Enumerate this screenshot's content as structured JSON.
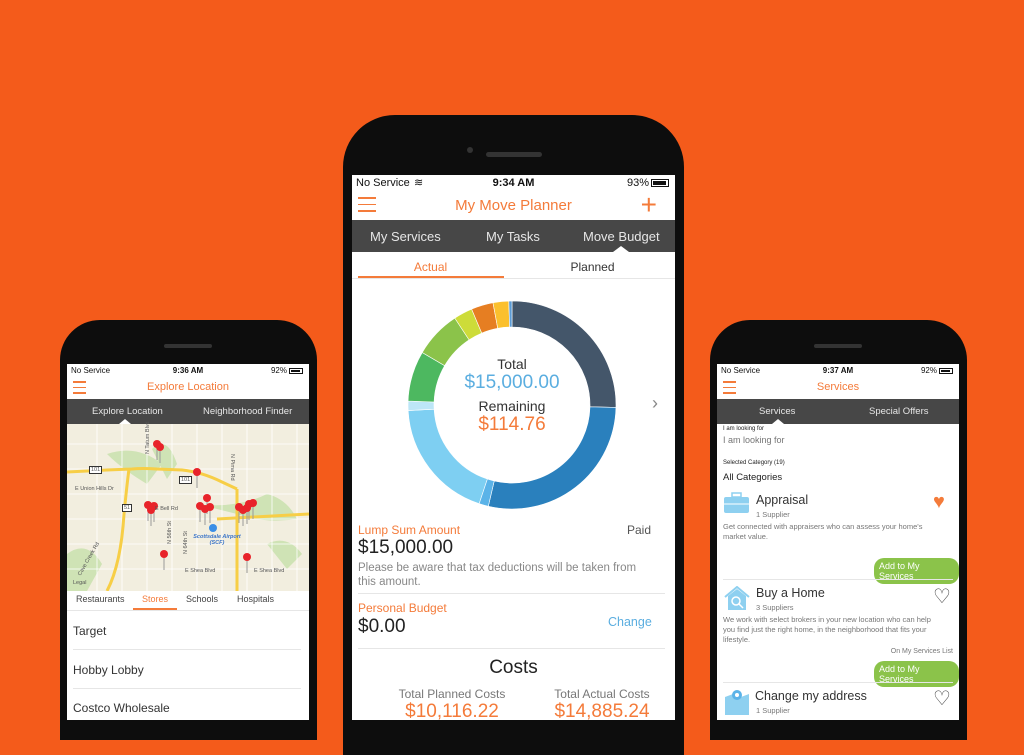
{
  "colors": {
    "background": "#F45B1B",
    "accent": "#F47B3A",
    "tabbar": "#474747",
    "link": "#5BAEE0",
    "button": "#8BC34A"
  },
  "center": {
    "status": {
      "carrier": "No Service",
      "time": "9:34 AM",
      "battery": "93%"
    },
    "title": "My Move Planner",
    "menu_icon": "hamburger-icon",
    "add_icon": "plus-icon",
    "tabs": [
      "My Services",
      "My Tasks",
      "Move Budget"
    ],
    "active_tab": "Move Budget",
    "subtabs": [
      "Actual",
      "Planned"
    ],
    "active_subtab": "Actual",
    "donut": {
      "total_label": "Total",
      "total": "$15,000.00",
      "remaining_label": "Remaining",
      "remaining": "$114.76",
      "segments_percent": [
        26,
        29,
        1.5,
        19.5,
        1.5,
        8,
        7.5,
        3,
        3.5,
        2.5,
        0.5
      ],
      "segment_colors": [
        "#44566A",
        "#2A80BD",
        "#5BB3E8",
        "#7ECFF2",
        "#BDE6F7",
        "#4DB860",
        "#8BC34A",
        "#CDDC39",
        "#E67E22",
        "#FBC02D",
        "#5B9BD5"
      ]
    },
    "lump_sum": {
      "label": "Lump Sum Amount",
      "status": "Paid",
      "amount": "$15,000.00",
      "note": "Please be aware that tax deductions will be taken from this amount."
    },
    "personal_budget": {
      "label": "Personal Budget",
      "amount": "$0.00",
      "action": "Change"
    },
    "costs": {
      "title": "Costs",
      "planned_label": "Total Planned Costs",
      "planned": "$10,116.22",
      "actual_label": "Total Actual Costs",
      "actual": "$14,885.24"
    }
  },
  "left": {
    "status": {
      "carrier": "No Service",
      "time": "9:36 AM",
      "battery": "92%"
    },
    "title": "Explore Location",
    "tabs": [
      "Explore Location",
      "Neighborhood Finder"
    ],
    "active_tab": "Explore Location",
    "map_labels": [
      "E Union Hills Dr",
      "E Bell Rd",
      "N Tatum Blvd",
      "N Pima Rd",
      "N 56th St",
      "N 64th St",
      "Scottsdale Airport (SCF)",
      "E Shea Blvd",
      "E Shea Blvd",
      "Cave Creek Rd",
      "101",
      "101",
      "51",
      "Legal"
    ],
    "categories": [
      "Restaurants",
      "Stores",
      "Schools",
      "Hospitals"
    ],
    "active_category": "Stores",
    "places": [
      "Target",
      "Hobby Lobby",
      "Costco Wholesale"
    ]
  },
  "right": {
    "status": {
      "carrier": "No Service",
      "time": "9:37 AM",
      "battery": "92%"
    },
    "title": "Services",
    "tabs": [
      "Services",
      "Special Offers"
    ],
    "active_tab": "Services",
    "search_label": "I am looking for",
    "search_placeholder": "I am looking for",
    "category_label": "Selected Category (19)",
    "category_value": "All Categories",
    "services": [
      {
        "name": "Appraisal",
        "suppliers": "1 Supplier",
        "desc": "Get connected with appraisers who can assess your home's market value.",
        "favorite": true,
        "button": "Add to My Services",
        "icon": "briefcase-icon"
      },
      {
        "name": "Buy a Home",
        "suppliers": "3 Suppliers",
        "desc": "We work with select brokers in your new location who can help you find just the right home, in the neighborhood that fits your lifestyle.",
        "note": "On My Services List",
        "favorite": false,
        "button": "Add to My Services",
        "icon": "house-search-icon"
      },
      {
        "name": "Change my address",
        "suppliers": "1 Supplier",
        "favorite": false,
        "icon": "map-pin-icon"
      }
    ]
  }
}
